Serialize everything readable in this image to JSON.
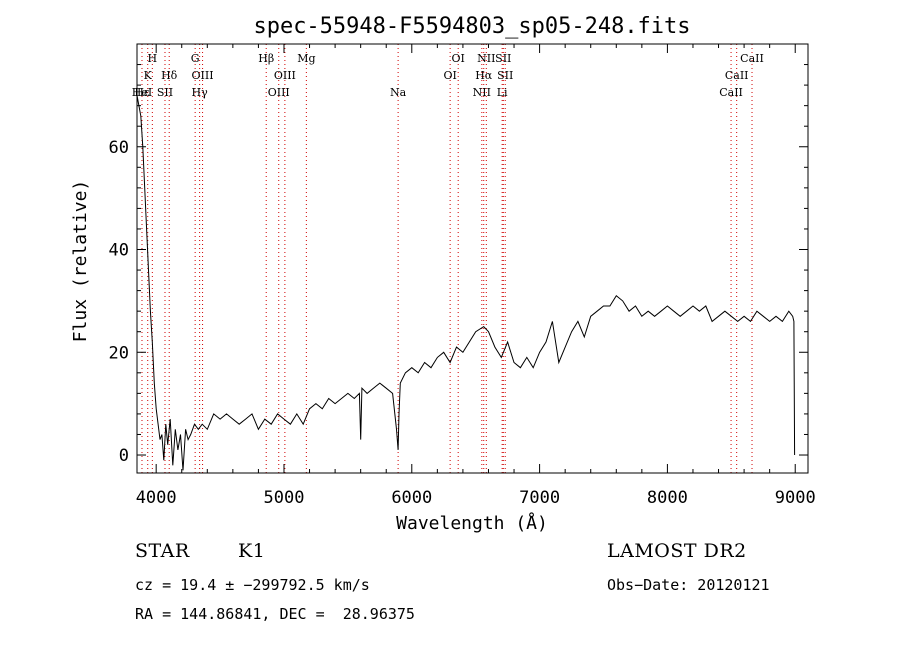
{
  "chart_data": {
    "type": "line",
    "title": "spec-55948-F5594803_sp05-248.fits",
    "xlabel": "Wavelength (Å)",
    "ylabel": "Flux (relative)",
    "xlim": [
      3850,
      9100
    ],
    "ylim": [
      -3.5,
      80
    ],
    "xticks": [
      4000,
      5000,
      6000,
      7000,
      8000,
      9000
    ],
    "yticks": [
      0,
      20,
      40,
      60
    ],
    "grid": false,
    "series": [
      {
        "x": [
          3850,
          3880,
          3895,
          3910,
          3925,
          3940,
          3955,
          3970,
          3985,
          4000,
          4015,
          4030,
          4045,
          4060,
          4075,
          4090,
          4110,
          4130,
          4150,
          4170,
          4190,
          4210,
          4230,
          4250,
          4270,
          4300,
          4330,
          4360,
          4400,
          4450,
          4500,
          4550,
          4600,
          4650,
          4700,
          4750,
          4800,
          4850,
          4900,
          4950,
          5000,
          5050,
          5100,
          5150,
          5200,
          5250,
          5300,
          5350,
          5400,
          5450,
          5500,
          5550,
          5590,
          5600,
          5610,
          5650,
          5700,
          5750,
          5800,
          5850,
          5880,
          5893,
          5900,
          5910,
          5950,
          6000,
          6050,
          6100,
          6150,
          6200,
          6250,
          6300,
          6350,
          6400,
          6450,
          6500,
          6563,
          6600,
          6650,
          6700,
          6750,
          6800,
          6850,
          6900,
          6950,
          7000,
          7050,
          7100,
          7150,
          7200,
          7250,
          7300,
          7350,
          7400,
          7450,
          7500,
          7550,
          7600,
          7650,
          7700,
          7750,
          7800,
          7850,
          7900,
          7950,
          8000,
          8050,
          8100,
          8150,
          8200,
          8250,
          8300,
          8350,
          8400,
          8450,
          8500,
          8550,
          8600,
          8650,
          8700,
          8750,
          8800,
          8850,
          8900,
          8950,
          8980,
          8990,
          8995
        ],
        "y": [
          70,
          66,
          60,
          52,
          44,
          36,
          28,
          22,
          14,
          9,
          6,
          3,
          4,
          -1,
          6,
          2,
          7,
          -2,
          5,
          1,
          4,
          -3,
          5,
          3,
          4,
          6,
          5,
          6,
          5,
          8,
          7,
          8,
          7,
          6,
          7,
          8,
          5,
          7,
          6,
          8,
          7,
          6,
          8,
          6,
          9,
          10,
          9,
          11,
          10,
          11,
          12,
          11,
          12,
          3,
          13,
          12,
          13,
          14,
          13,
          12,
          5,
          1,
          8,
          14,
          16,
          17,
          16,
          18,
          17,
          19,
          20,
          18,
          21,
          20,
          22,
          24,
          25,
          24,
          21,
          19,
          22,
          18,
          17,
          19,
          17,
          20,
          22,
          26,
          18,
          21,
          24,
          26,
          23,
          27,
          28,
          29,
          29,
          31,
          30,
          28,
          29,
          27,
          28,
          27,
          28,
          29,
          28,
          27,
          28,
          29,
          28,
          29,
          26,
          27,
          28,
          27,
          26,
          27,
          26,
          28,
          27,
          26,
          27,
          26,
          28,
          27,
          26,
          0
        ]
      }
    ],
    "spectral_lines": [
      {
        "label": "H",
        "x": 3970,
        "row": 0
      },
      {
        "label": "K",
        "x": 3934,
        "row": 1
      },
      {
        "label": "Hε",
        "x": 3889,
        "row": 2
      },
      {
        "label": "HeI",
        "x": 3889,
        "row": 2
      },
      {
        "label": "Hδ",
        "x": 4102,
        "row": 1
      },
      {
        "label": "SII",
        "x": 4069,
        "row": 2
      },
      {
        "label": "G",
        "x": 4305,
        "row": 0
      },
      {
        "label": "OIII",
        "x": 4363,
        "row": 1
      },
      {
        "label": "Hγ",
        "x": 4340,
        "row": 2
      },
      {
        "label": "Hβ",
        "x": 4861,
        "row": 0
      },
      {
        "label": "OIII",
        "x": 5007,
        "row": 1
      },
      {
        "label": "OIII",
        "x": 4959,
        "row": 2
      },
      {
        "label": "Mg",
        "x": 5175,
        "row": 0
      },
      {
        "label": "Na",
        "x": 5893,
        "row": 2
      },
      {
        "label": "OI",
        "x": 6363,
        "row": 0
      },
      {
        "label": "OI",
        "x": 6300,
        "row": 1
      },
      {
        "label": "NII",
        "x": 6583,
        "row": 0
      },
      {
        "label": "SII",
        "x": 6716,
        "row": 0
      },
      {
        "label": "Hα",
        "x": 6563,
        "row": 1
      },
      {
        "label": "SII",
        "x": 6731,
        "row": 1
      },
      {
        "label": "NII",
        "x": 6548,
        "row": 2
      },
      {
        "label": "Li",
        "x": 6707,
        "row": 2
      },
      {
        "label": "CaII",
        "x": 8662,
        "row": 0
      },
      {
        "label": "CaII",
        "x": 8542,
        "row": 1
      },
      {
        "label": "CaII",
        "x": 8498,
        "row": 2
      }
    ]
  },
  "info": {
    "class": "STAR",
    "subclass": "K1",
    "survey": "LAMOST DR2",
    "cz": "cz = 19.4 ± −299792.5 km/s",
    "obs_date": "Obs−Date: 20120121",
    "coords": "RA = 144.86841, DEC =  28.96375"
  }
}
